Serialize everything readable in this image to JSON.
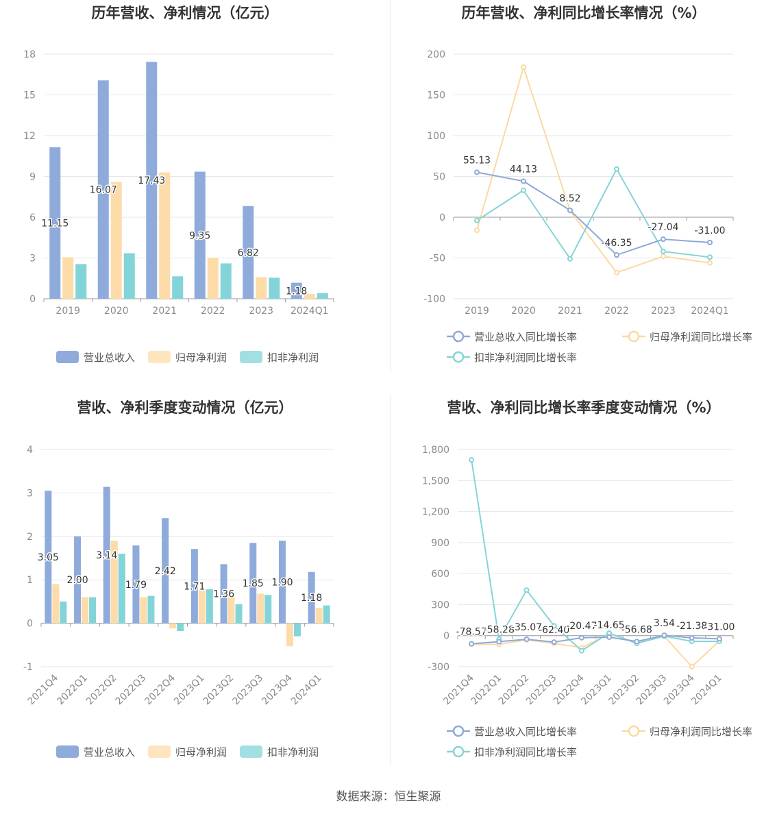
{
  "source": "数据来源：恒生聚源",
  "colors": {
    "revenue": "#8eabdb",
    "net_profit": "#fddcaa",
    "deducted": "#83d4d8",
    "grid": "#e6e6e6",
    "axis": "#999999"
  },
  "chart_data": [
    {
      "type": "bar",
      "title": "历年营收、净利情况（亿元）",
      "categories": [
        "2019",
        "2020",
        "2021",
        "2022",
        "2023",
        "2024Q1"
      ],
      "ylim": [
        0,
        18
      ],
      "yticks": [
        "0",
        "3",
        "6",
        "9",
        "12",
        "15",
        "18"
      ],
      "series": [
        {
          "name": "营业总收入",
          "values": [
            11.15,
            16.07,
            17.43,
            9.35,
            6.82,
            1.18
          ],
          "labels": [
            "11.15",
            "16.07",
            "17.43",
            "9.35",
            "6.82",
            "1.18"
          ]
        },
        {
          "name": "归母净利润",
          "values": [
            3.05,
            8.6,
            9.3,
            3.0,
            1.6,
            0.35
          ]
        },
        {
          "name": "扣非净利润",
          "values": [
            2.55,
            3.35,
            1.65,
            2.6,
            1.55,
            0.42
          ]
        }
      ],
      "grid": true,
      "legend": "bottom"
    },
    {
      "type": "line",
      "title": "历年营收、净利同比增长率情况（%）",
      "categories": [
        "2019",
        "2020",
        "2021",
        "2022",
        "2023",
        "2024Q1"
      ],
      "ylim": [
        -100,
        200
      ],
      "yticks": [
        "-100",
        "-50",
        "0",
        "50",
        "100",
        "150",
        "200"
      ],
      "series": [
        {
          "name": "营业总收入同比增长率",
          "values": [
            55.13,
            44.13,
            8.52,
            -46.35,
            -27.04,
            -31.0
          ],
          "labels": [
            "55.13",
            "44.13",
            "8.52",
            "-46.35",
            "-27.04",
            "-31.00"
          ]
        },
        {
          "name": "归母净利润同比增长率",
          "values": [
            -16,
            184,
            8,
            -68,
            -48,
            -56
          ]
        },
        {
          "name": "扣非净利润同比增长率",
          "values": [
            -4,
            33,
            -51,
            59,
            -42,
            -49
          ]
        }
      ],
      "grid": true,
      "legend": "bottom"
    },
    {
      "type": "bar",
      "title": "营收、净利季度变动情况（亿元）",
      "categories": [
        "2021Q4",
        "2022Q1",
        "2022Q2",
        "2022Q3",
        "2022Q4",
        "2023Q1",
        "2023Q2",
        "2023Q3",
        "2023Q4",
        "2024Q1"
      ],
      "ylim": [
        -1,
        4
      ],
      "yticks": [
        "-1",
        "0",
        "1",
        "2",
        "3",
        "4"
      ],
      "series": [
        {
          "name": "营业总收入",
          "values": [
            3.05,
            2.0,
            3.14,
            1.79,
            2.42,
            1.71,
            1.36,
            1.85,
            1.9,
            1.18
          ],
          "labels": [
            "3.05",
            "2.00",
            "3.14",
            "1.79",
            "2.42",
            "1.71",
            "1.36",
            "1.85",
            "1.90",
            "1.18"
          ]
        },
        {
          "name": "归母净利润",
          "values": [
            0.9,
            0.6,
            1.9,
            0.6,
            -0.12,
            0.78,
            0.6,
            0.68,
            -0.53,
            0.35
          ]
        },
        {
          "name": "扣非净利润",
          "values": [
            0.5,
            0.6,
            1.6,
            0.63,
            -0.18,
            0.78,
            0.44,
            0.65,
            -0.3,
            0.41
          ]
        }
      ],
      "grid": true,
      "legend": "bottom"
    },
    {
      "type": "line",
      "title": "营收、净利同比增长率季度变动情况（%）",
      "categories": [
        "2021Q4",
        "2022Q1",
        "2022Q2",
        "2022Q3",
        "2022Q4",
        "2023Q1",
        "2023Q2",
        "2023Q3",
        "2023Q4",
        "2024Q1"
      ],
      "ylim": [
        -300,
        1800
      ],
      "yticks": [
        "-300",
        "0",
        "300",
        "600",
        "900",
        "1,200",
        "1,500",
        "1,800"
      ],
      "series": [
        {
          "name": "营业总收入同比增长率",
          "values": [
            -78.57,
            -58.28,
            -35.07,
            -62.4,
            -20.47,
            -14.65,
            -56.68,
            3.54,
            -21.38,
            -31.0
          ],
          "labels": [
            "-78.57",
            "-58.28",
            "-35.07",
            "-62.40",
            "-20.47",
            "-14.65",
            "-56.68",
            "3.54",
            "-21.38",
            "-31.00"
          ]
        },
        {
          "name": "归母净利润同比增长率",
          "values": [
            -85,
            -85,
            -40,
            -75,
            -115,
            15,
            -65,
            -5,
            -300,
            -50
          ]
        },
        {
          "name": "扣非净利润同比增长率",
          "values": [
            1700,
            -35,
            440,
            95,
            -145,
            25,
            -75,
            -5,
            -55,
            -55
          ]
        }
      ],
      "grid": true,
      "legend": "bottom"
    }
  ]
}
